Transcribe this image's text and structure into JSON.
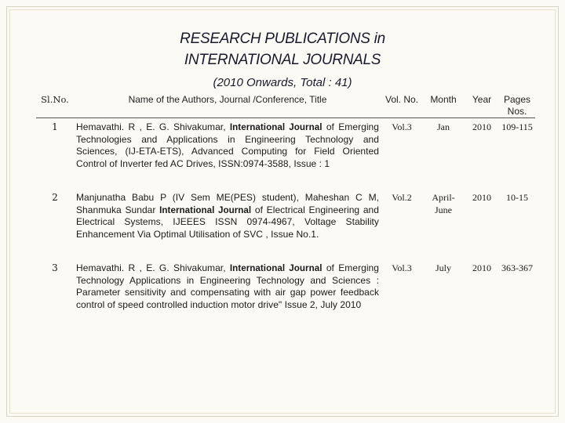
{
  "title": {
    "line1": "RESEARCH PUBLICATIONS in",
    "line2": "INTERNATIONAL JOURNALS",
    "subtitle": "(2010 Onwards, Total : 41)"
  },
  "table": {
    "headers": {
      "sl": "Sl.No.",
      "name": "Name of the Authors, Journal /Conference, Title",
      "vol": "Vol. No.",
      "month": "Month",
      "year": "Year",
      "pages": "Pages Nos."
    },
    "rows": [
      {
        "sl": "1",
        "pre": "Hemavathi. R , E. G. Shivakumar, ",
        "journal": "International Journal",
        "post": " of Emerging Technologies and Applications in Engineering Technology and Sciences, (IJ-ETA-ETS), Advanced Computing for Field Oriented Control of Inverter fed AC Drives, ISSN:0974-3588, Issue : 1",
        "vol": "Vol.3",
        "month": "Jan",
        "year": "2010",
        "pages": "109-115"
      },
      {
        "sl": "2",
        "pre": "Manjunatha Babu P (IV Sem ME(PES) student), Maheshan C M, Shanmuka Sundar ",
        "journal": "International Journal",
        "post": " of Electrical Engineering and Electrical Systems, IJEEES ISSN 0974-4967, Voltage Stability Enhancement Via Optimal Utilisation of SVC , Issue No.1.",
        "vol": "Vol.2",
        "month": "April-June",
        "year": "2010",
        "pages": "10-15"
      },
      {
        "sl": "3",
        "pre": "Hemavathi. R , E. G. Shivakumar, ",
        "journal": "International Journal",
        "post": " of Emerging Technology Applications in Engineering Technology and Sciences : Parameter sensitivity and compensating with air gap power feedback control of speed controlled induction motor drive\" Issue 2, July 2010",
        "vol": "Vol.3",
        "month": "July",
        "year": "2010",
        "pages": "363-367"
      }
    ]
  }
}
